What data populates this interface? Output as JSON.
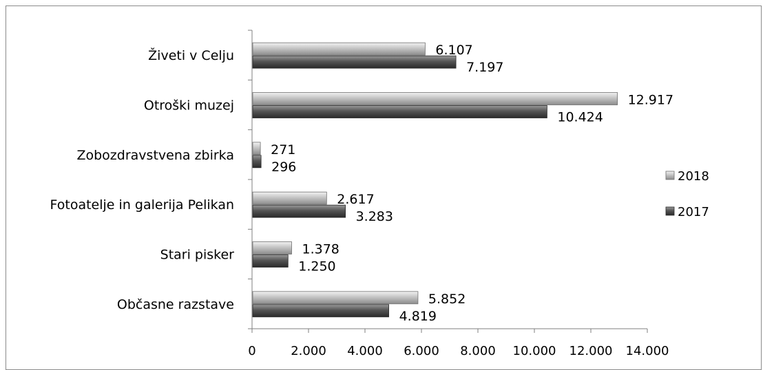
{
  "chart_data": {
    "type": "bar",
    "orientation": "horizontal",
    "categories": [
      "Živeti v Celju",
      "Otroški muzej",
      "Zobozdravstvena zbirka",
      "Fotoatelje in galerija Pelikan",
      "Stari pisker",
      "Občasne razstave"
    ],
    "series": [
      {
        "name": "2018",
        "color": "#b3b3b3",
        "values": [
          6107,
          12917,
          271,
          2617,
          1378,
          5852
        ],
        "labels": [
          "6.107",
          "12.917",
          "271",
          "2.617",
          "1.378",
          "5.852"
        ]
      },
      {
        "name": "2017",
        "color": "#555555",
        "values": [
          7197,
          10424,
          296,
          3283,
          1250,
          4819
        ],
        "labels": [
          "7.197",
          "10.424",
          "296",
          "3.283",
          "1.250",
          "4.819"
        ]
      }
    ],
    "xlim": [
      0,
      14000
    ],
    "xticks": [
      0,
      2000,
      4000,
      6000,
      8000,
      10000,
      12000,
      14000
    ],
    "xtick_labels": [
      "0",
      "2.000",
      "4.000",
      "6.000",
      "8.000",
      "10.000",
      "12.000",
      "14.000"
    ],
    "legend": "right",
    "grid": false,
    "title": "",
    "xlabel": "",
    "ylabel": ""
  }
}
